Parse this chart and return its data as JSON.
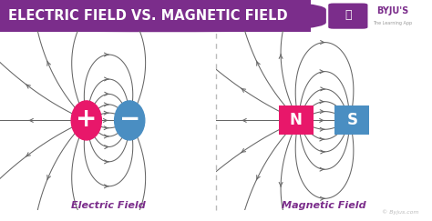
{
  "title": "ELECTRIC FIELD VS. MAGNETIC FIELD",
  "title_bg_color": "#7B2D8B",
  "title_text_color": "#FFFFFF",
  "bg_color": "#FFFFFF",
  "left_label": "Electric Field",
  "right_label": "Magnetic Field",
  "label_color": "#7B2D8B",
  "plus_color": "#E8176A",
  "minus_color": "#4A8EC2",
  "north_color": "#E8176A",
  "south_color": "#4A8EC2",
  "field_line_color": "#666666",
  "divider_color": "#BBBBBB",
  "watermark": "© Byjus.com"
}
